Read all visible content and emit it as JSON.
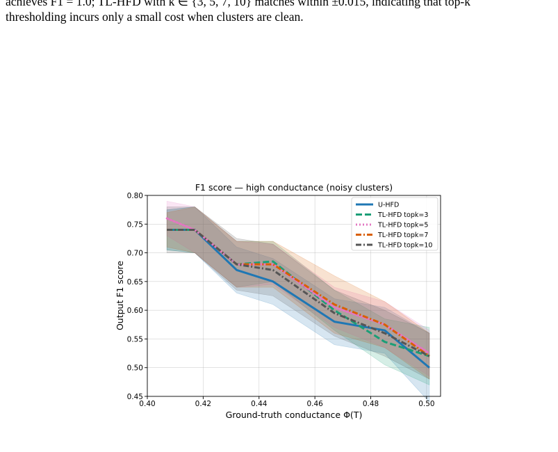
{
  "paper": {
    "caption_line_1": "achieves F1 = 1.0; TL-HFD with k ∈ {3, 5, 7, 10} matches within ±0.015, indicating that top-k",
    "caption_line_2": "thresholding incurs only a small cost when clusters are clean."
  },
  "chart_data": {
    "type": "line",
    "title": "F1 score — high conductance (noisy clusters)",
    "xlabel": "Ground-truth conductance Φ(T)",
    "ylabel": "Output F1 score",
    "xlim": [
      0.4,
      0.505
    ],
    "ylim": [
      0.45,
      0.8
    ],
    "x_ticks": [
      "0.40",
      "0.42",
      "0.44",
      "0.46",
      "0.48",
      "0.50"
    ],
    "y_ticks": [
      "0.45",
      "0.50",
      "0.55",
      "0.60",
      "0.65",
      "0.70",
      "0.75",
      "0.80"
    ],
    "grid": true,
    "legend_position": "top-right",
    "x": [
      0.407,
      0.417,
      0.432,
      0.445,
      0.467,
      0.485,
      0.501
    ],
    "series": [
      {
        "name": "U-HFD",
        "color": "#1f77b4",
        "style": "solid",
        "values": [
          0.74,
          0.74,
          0.67,
          0.65,
          0.58,
          0.565,
          0.5
        ],
        "band": [
          0.035,
          0.04,
          0.04,
          0.04,
          0.04,
          0.04,
          0.06
        ]
      },
      {
        "name": "TL-HFD topk=3",
        "color": "#1b9e77",
        "style": "dash",
        "values": [
          0.74,
          0.74,
          0.68,
          0.685,
          0.6,
          0.545,
          0.52
        ],
        "band": [
          0.035,
          0.04,
          0.04,
          0.035,
          0.035,
          0.04,
          0.05
        ]
      },
      {
        "name": "TL-HFD topk=5",
        "color": "#e377c2",
        "style": "dot",
        "values": [
          0.76,
          0.74,
          0.68,
          0.68,
          0.605,
          0.575,
          0.525
        ],
        "band": [
          0.03,
          0.04,
          0.04,
          0.035,
          0.035,
          0.04,
          0.04
        ]
      },
      {
        "name": "TL-HFD topk=7",
        "color": "#d95f02",
        "style": "dashdot",
        "values": [
          0.74,
          0.74,
          0.68,
          0.68,
          0.61,
          0.575,
          0.52
        ],
        "band": [
          0.03,
          0.04,
          0.04,
          0.04,
          0.05,
          0.04,
          0.04
        ]
      },
      {
        "name": "TL-HFD topk=10",
        "color": "#555555",
        "style": "dashdot",
        "values": [
          0.74,
          0.74,
          0.68,
          0.67,
          0.595,
          0.56,
          0.52
        ],
        "band": [
          0.04,
          0.04,
          0.045,
          0.045,
          0.04,
          0.04,
          0.04
        ]
      }
    ]
  }
}
